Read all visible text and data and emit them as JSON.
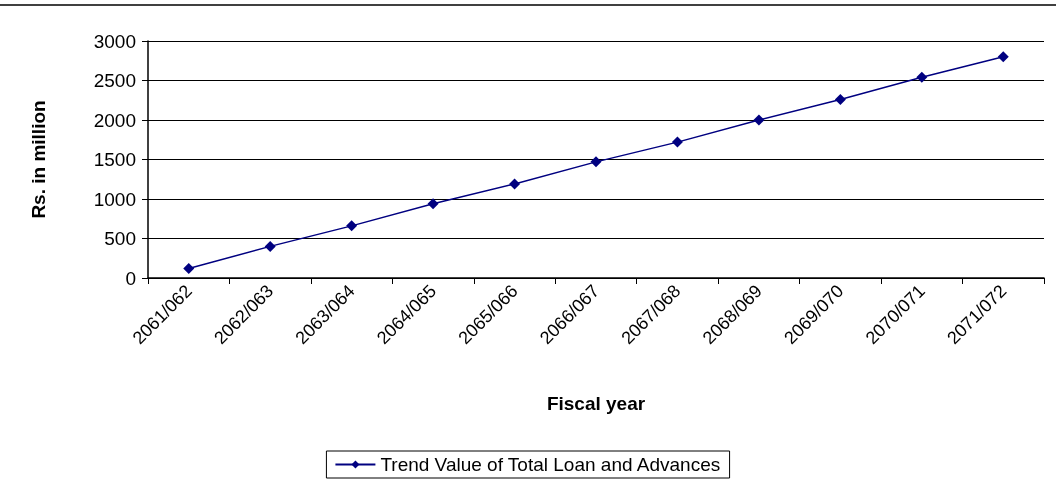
{
  "chart_data": {
    "type": "line",
    "xlabel": "Fiscal year",
    "ylabel": "Rs. in million",
    "categories": [
      "2061/062",
      "2062/063",
      "2063/064",
      "2064/065",
      "2065/066",
      "2066/067",
      "2067/068",
      "2068/069",
      "2069/070",
      "2070/071",
      "2071/072"
    ],
    "series": [
      {
        "name": "Trend Value of Total Loan and Advances",
        "color": "#000080",
        "values": [
          120,
          400,
          660,
          940,
          1190,
          1470,
          1720,
          2000,
          2260,
          2540,
          2800
        ]
      }
    ],
    "ylim": [
      0,
      3000
    ],
    "yticks": [
      0,
      500,
      1000,
      1500,
      2000,
      2500,
      3000
    ],
    "grid": "y",
    "legend": "bottom",
    "marker": "diamond",
    "line_style": "solid"
  }
}
